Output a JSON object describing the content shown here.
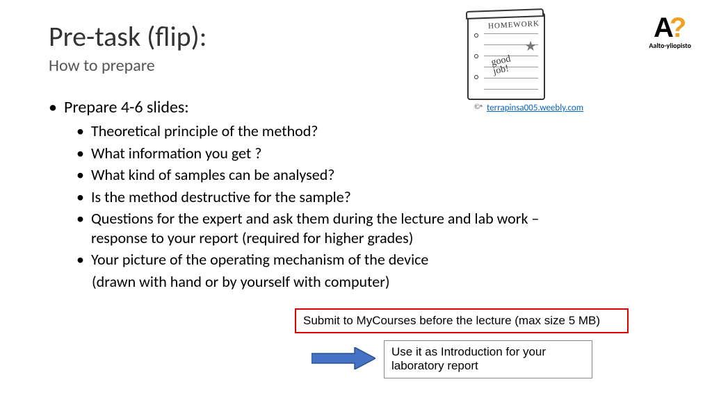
{
  "title": "Pre-task (flip):",
  "subtitle": "How to prepare",
  "main_bullet": "Prepare 4-6 slides:",
  "sub_bullets": [
    "Theoretical principle of the method?",
    "What information you get ?",
    "What kind of samples can be analysed?",
    "Is the method destructive for the sample?",
    "Questions for the expert and ask them during the lecture and lab work – response to your report (required for higher grades)",
    "Your picture of the operating mechanism of the device"
  ],
  "indent_extra": "(drawn with hand or by yourself with computer)",
  "homework": {
    "label": "HOMEWORK",
    "annotation": "good\njob!",
    "credit_prefix": "©ⁿ",
    "credit_link": "terrapinsa005.weebly.com"
  },
  "logo": {
    "A": "A",
    "Q": "?",
    "sub": "Aalto-yliopisto",
    "colors": {
      "q": "#f0a020",
      "a": "#000000"
    }
  },
  "red_box": {
    "text": "Submit to MyCourses before the lecture (max size 5 MB)",
    "border_color": "#e00000"
  },
  "gray_box": {
    "text": "Use it as Introduction for your laboratory report",
    "border_color": "#888888"
  },
  "arrow": {
    "fill": "#4472c4",
    "stroke": "#2f528f",
    "width": 92,
    "height": 32
  },
  "fonts": {
    "title_size": 40,
    "subtitle_size": 24,
    "body_size": 22
  },
  "colors": {
    "background": "#ffffff",
    "text": "#000000",
    "link": "#0563c1"
  }
}
